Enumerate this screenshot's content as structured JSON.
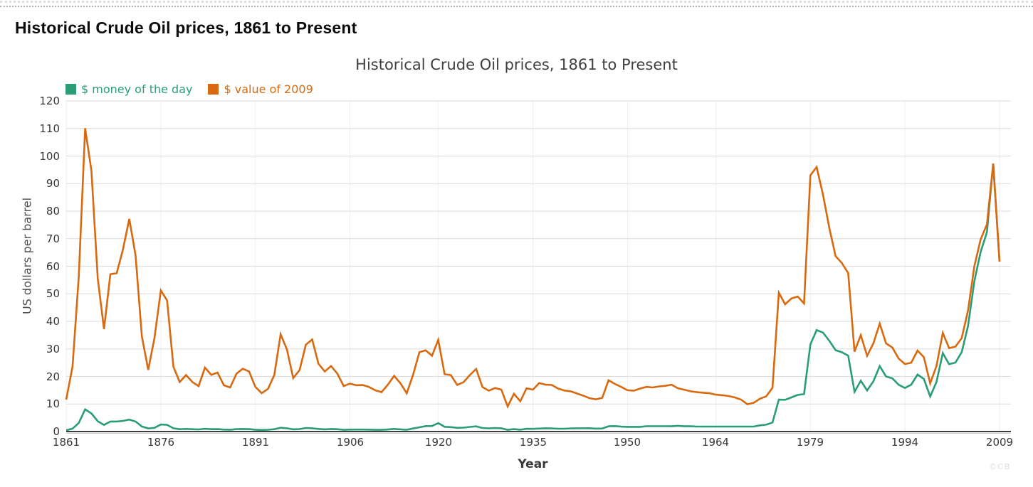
{
  "page": {
    "title": "Historical Crude Oil prices, 1861 to Present",
    "watermark": "©CB"
  },
  "chart_data": {
    "type": "line",
    "title": "Historical Crude Oil prices, 1861 to Present",
    "xlabel": "Year",
    "ylabel": "US dollars per barrel",
    "x_range": [
      1861,
      2009
    ],
    "x_step": 1,
    "ylim": [
      0,
      120
    ],
    "y_ticks": [
      0,
      10,
      20,
      30,
      40,
      50,
      60,
      70,
      80,
      90,
      100,
      110,
      120
    ],
    "x_ticks": [
      1861,
      1876,
      1891,
      1906,
      1920,
      1935,
      1950,
      1964,
      1979,
      1994,
      2009
    ],
    "grid": true,
    "legend_position": "top-left",
    "series": [
      {
        "name": "$ money of the day",
        "color": "#2a9d77",
        "values": [
          0.49,
          1.05,
          3.15,
          8.06,
          6.59,
          3.74,
          2.41,
          3.63,
          3.64,
          3.86,
          4.34,
          3.64,
          1.83,
          1.17,
          1.35,
          2.56,
          2.42,
          1.19,
          0.86,
          0.95,
          0.86,
          0.78,
          1.0,
          0.84,
          0.88,
          0.71,
          0.67,
          0.88,
          0.94,
          0.87,
          0.67,
          0.56,
          0.64,
          0.84,
          1.36,
          1.18,
          0.79,
          0.91,
          1.29,
          1.19,
          0.96,
          0.8,
          0.94,
          0.86,
          0.62,
          0.73,
          0.72,
          0.72,
          0.7,
          0.61,
          0.61,
          0.74,
          0.95,
          0.81,
          0.64,
          1.1,
          1.56,
          1.98,
          2.01,
          3.07,
          1.73,
          1.61,
          1.34,
          1.43,
          1.68,
          1.88,
          1.3,
          1.17,
          1.27,
          1.19,
          0.65,
          0.87,
          0.67,
          1.0,
          0.97,
          1.09,
          1.18,
          1.13,
          1.02,
          1.02,
          1.14,
          1.19,
          1.2,
          1.21,
          1.05,
          1.12,
          1.9,
          1.99,
          1.78,
          1.71,
          1.71,
          1.71,
          1.93,
          1.93,
          1.93,
          1.93,
          1.9,
          2.08,
          1.9,
          1.9,
          1.8,
          1.8,
          1.8,
          1.8,
          1.8,
          1.8,
          1.8,
          1.8,
          1.8,
          1.8,
          2.24,
          2.48,
          3.29,
          11.58,
          11.53,
          12.38,
          13.3,
          13.6,
          31.61,
          36.83,
          35.93,
          32.97,
          29.55,
          28.78,
          27.56,
          14.43,
          18.44,
          14.92,
          18.23,
          23.73,
          20.0,
          19.32,
          16.97,
          15.82,
          17.02,
          20.67,
          19.09,
          12.72,
          17.97,
          28.5,
          24.44,
          25.02,
          28.83,
          38.27,
          54.52,
          65.14,
          72.39,
          97.26,
          61.67
        ]
      },
      {
        "name": "$ value of 2009",
        "color": "#d9690f",
        "values": [
          11.6,
          23.6,
          56.5,
          110.1,
          94.7,
          55.6,
          37.2,
          57.1,
          57.5,
          66.1,
          77.2,
          64.0,
          34.5,
          22.4,
          34.0,
          51.2,
          47.6,
          23.5,
          18.0,
          20.5,
          18.0,
          16.5,
          23.2,
          20.6,
          21.4,
          16.8,
          16.0,
          21.0,
          22.8,
          21.8,
          16.2,
          13.9,
          15.5,
          20.5,
          35.3,
          29.8,
          19.4,
          22.3,
          31.5,
          33.4,
          24.6,
          21.8,
          23.8,
          21.0,
          16.5,
          17.4,
          16.8,
          16.9,
          16.2,
          15.0,
          14.3,
          17.0,
          20.2,
          17.5,
          13.9,
          20.6,
          28.8,
          29.5,
          27.5,
          33.3,
          20.8,
          20.5,
          16.9,
          17.9,
          20.5,
          22.7,
          16.2,
          14.8,
          15.8,
          15.2,
          9.1,
          13.7,
          11.0,
          15.7,
          15.2,
          17.6,
          17.0,
          16.9,
          15.6,
          14.9,
          14.6,
          13.8,
          13.0,
          12.1,
          11.7,
          12.2,
          18.6,
          17.3,
          16.2,
          15.0,
          14.8,
          15.6,
          16.2,
          16.0,
          16.4,
          16.6,
          17.0,
          15.7,
          15.2,
          14.6,
          14.3,
          14.1,
          13.9,
          13.4,
          13.2,
          12.9,
          12.4,
          11.6,
          9.9,
          10.4,
          11.9,
          12.8,
          15.9,
          50.4,
          46.2,
          48.3,
          49.0,
          46.5,
          93.0,
          96.0,
          86.0,
          74.0,
          63.7,
          61.2,
          57.5,
          29.0,
          35.0,
          27.5,
          32.0,
          39.2,
          32.0,
          30.5,
          26.5,
          24.5,
          25.0,
          29.4,
          27.0,
          17.5,
          23.8,
          35.8,
          30.3,
          30.8,
          33.9,
          43.9,
          60.0,
          69.7,
          75.2,
          97.3,
          61.7
        ]
      }
    ]
  }
}
